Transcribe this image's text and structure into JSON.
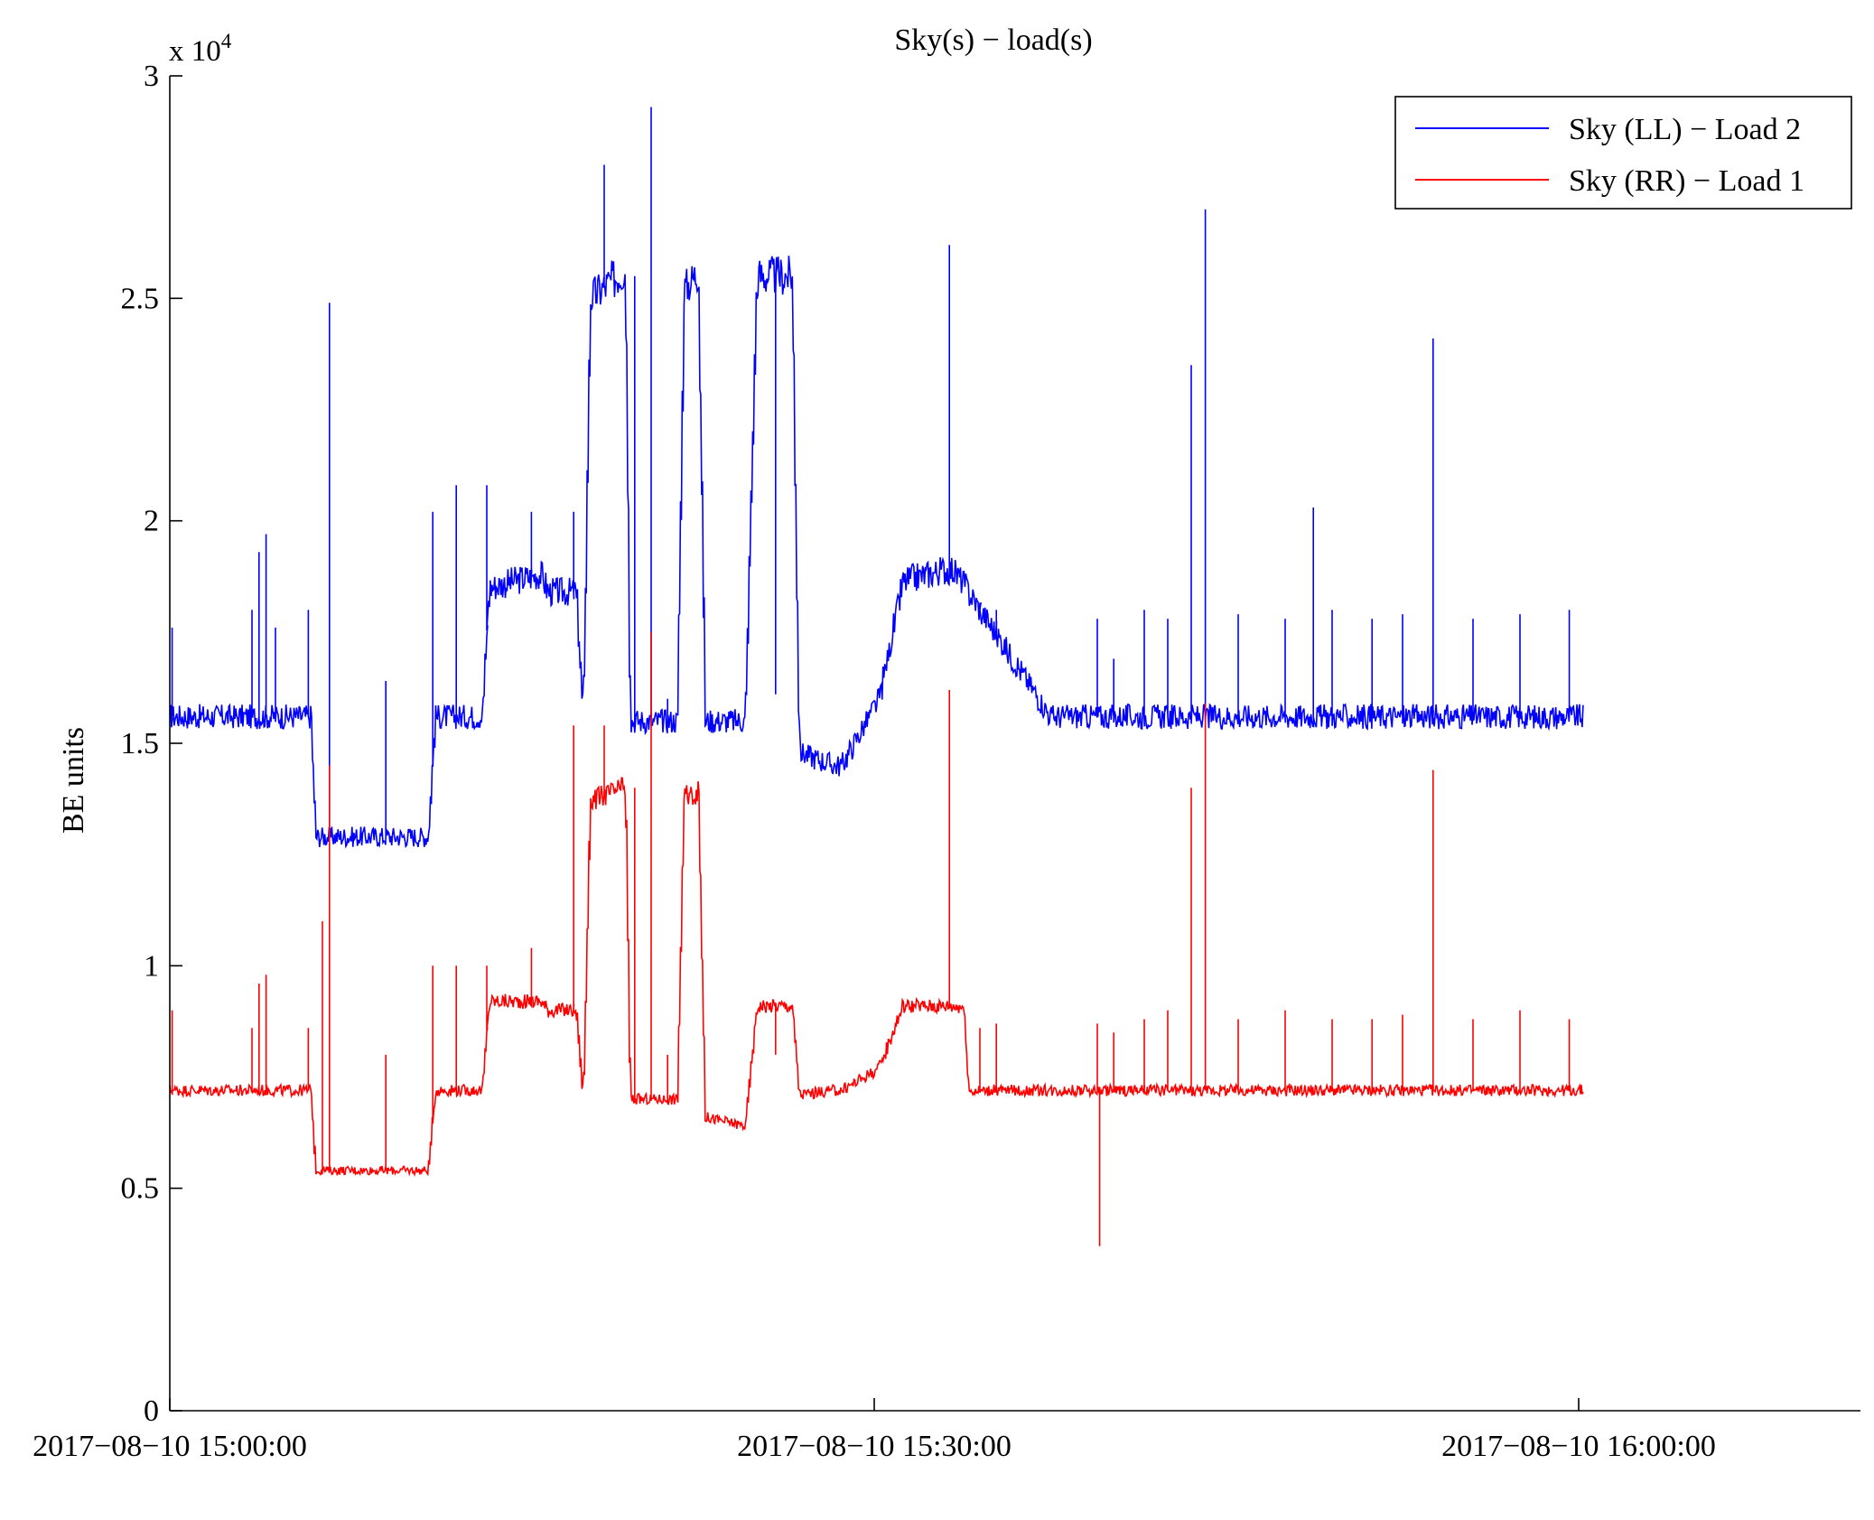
{
  "chart_data": {
    "type": "line",
    "title": "Sky(s) − load(s)",
    "xlabel": "",
    "ylabel": "BE units",
    "y_multiplier_label": "x 10",
    "y_multiplier_exponent": "4",
    "xlim_minutes": [
      0,
      72
    ],
    "ylim": [
      0,
      3
    ],
    "yticks": [
      0,
      0.5,
      1,
      1.5,
      2,
      2.5,
      3
    ],
    "ytick_labels": [
      "0",
      "0.5",
      "1",
      "1.5",
      "2",
      "2.5",
      "3"
    ],
    "xticks_minutes": [
      0,
      30,
      60
    ],
    "xtick_labels": [
      "2017−08−10 15:00:00",
      "2017−08−10 15:30:00",
      "2017−08−10 16:00:00"
    ],
    "grid": false,
    "legend_position": "top-right",
    "series": [
      {
        "name": "Sky (LL) − Load 2",
        "color": "#0000ff",
        "x_minutes": [
          0,
          6,
          6.2,
          7.5,
          7.7,
          9.5,
          9.7,
          11,
          11.3,
          12.5,
          12.7,
          13.3,
          13.6,
          15.8,
          16.1,
          17.3,
          17.6,
          17.9,
          19.3,
          19.4,
          19.6,
          21.6,
          21.9,
          22.5,
          22.8,
          24.5,
          25,
          26.5,
          26.8,
          28.3,
          28.6,
          30.2,
          31.2,
          31.6,
          33,
          33.3,
          33.8,
          34,
          37.5,
          60.2
        ],
        "y": [
          1.56,
          1.56,
          1.29,
          1.29,
          1.29,
          1.29,
          1.29,
          1.29,
          1.56,
          1.56,
          1.56,
          1.56,
          1.85,
          1.88,
          1.84,
          1.84,
          1.55,
          2.5,
          2.56,
          2.56,
          1.55,
          1.55,
          2.52,
          2.56,
          1.55,
          1.55,
          2.55,
          2.55,
          1.48,
          1.45,
          1.45,
          1.6,
          1.86,
          1.87,
          1.89,
          1.89,
          1.86,
          1.84,
          1.56,
          1.56
        ],
        "spikes": [
          [
            0.1,
            1.76
          ],
          [
            3.5,
            1.8
          ],
          [
            3.8,
            1.93
          ],
          [
            4.1,
            1.97
          ],
          [
            4.5,
            1.76
          ],
          [
            5.9,
            1.8
          ],
          [
            6.8,
            2.49
          ],
          [
            9.2,
            1.64
          ],
          [
            11.2,
            2.02
          ],
          [
            12.2,
            2.08
          ],
          [
            13.5,
            2.08
          ],
          [
            15.4,
            2.02
          ],
          [
            17.2,
            2.02
          ],
          [
            18.5,
            2.8
          ],
          [
            19.8,
            2.55
          ],
          [
            20.5,
            2.93
          ],
          [
            21.2,
            1.6
          ],
          [
            25.8,
            1.61
          ],
          [
            32.5,
            1.88
          ],
          [
            33.2,
            2.62
          ],
          [
            34.5,
            1.8
          ],
          [
            35.2,
            1.8
          ],
          [
            39.5,
            1.78
          ],
          [
            40.2,
            1.69
          ],
          [
            41.5,
            1.8
          ],
          [
            42.5,
            1.78
          ],
          [
            43.5,
            2.35
          ],
          [
            44.1,
            2.7
          ],
          [
            45.5,
            1.79
          ],
          [
            47.5,
            1.78
          ],
          [
            48.7,
            2.03
          ],
          [
            49.5,
            1.8
          ],
          [
            51.2,
            1.78
          ],
          [
            52.5,
            1.79
          ],
          [
            53.8,
            2.41
          ],
          [
            55.5,
            1.78
          ],
          [
            57.5,
            1.79
          ],
          [
            59.6,
            1.8
          ],
          [
            60.5,
            2.3
          ],
          [
            61.5,
            1.76
          ],
          [
            62.5,
            1.8
          ],
          [
            64.5,
            1.76
          ],
          [
            65.5,
            1.77
          ],
          [
            66,
            1.75
          ],
          [
            67.3,
            1.8
          ],
          [
            68.5,
            1.77
          ],
          [
            69.2,
            1.76
          ],
          [
            70.5,
            1.76
          ],
          [
            71.3,
            1.75
          ]
        ]
      },
      {
        "name": "Sky (RR) − Load 1",
        "color": "#ff0000",
        "x_minutes": [
          0,
          6,
          6.2,
          7.5,
          7.7,
          9.5,
          9.7,
          11,
          11.3,
          12.5,
          12.7,
          13.3,
          13.6,
          15.8,
          16.1,
          17.3,
          17.6,
          17.9,
          19.3,
          19.4,
          19.6,
          21.6,
          21.9,
          22.5,
          22.8,
          24.5,
          25,
          26.5,
          26.8,
          28.3,
          28.6,
          30.2,
          31.2,
          31.6,
          33,
          33.3,
          33.8,
          34,
          37.5,
          60.2
        ],
        "y": [
          0.72,
          0.72,
          0.54,
          0.54,
          0.54,
          0.54,
          0.54,
          0.54,
          0.72,
          0.72,
          0.72,
          0.72,
          0.92,
          0.92,
          0.9,
          0.9,
          0.7,
          1.37,
          1.4,
          1.4,
          0.7,
          0.7,
          1.38,
          1.39,
          0.66,
          0.64,
          0.91,
          0.91,
          0.71,
          0.72,
          0.72,
          0.77,
          0.91,
          0.91,
          0.91,
          0.91,
          0.91,
          0.72,
          0.72,
          0.72
        ],
        "spikes": [
          [
            0.1,
            0.9
          ],
          [
            3.5,
            0.86
          ],
          [
            3.8,
            0.96
          ],
          [
            4.1,
            0.98
          ],
          [
            5.9,
            0.86
          ],
          [
            6.5,
            1.1
          ],
          [
            6.8,
            1.45
          ],
          [
            9.2,
            0.8
          ],
          [
            11.2,
            1.0
          ],
          [
            12.2,
            1.0
          ],
          [
            13.5,
            1.0
          ],
          [
            15.4,
            1.04
          ],
          [
            17.2,
            1.54
          ],
          [
            18.5,
            1.54
          ],
          [
            19.8,
            1.4
          ],
          [
            20.5,
            1.75
          ],
          [
            21.2,
            0.8
          ],
          [
            25.8,
            0.8
          ],
          [
            32.5,
            0.91
          ],
          [
            33.2,
            1.62
          ],
          [
            34.5,
            0.86
          ],
          [
            35.2,
            0.87
          ],
          [
            39.5,
            0.87
          ],
          [
            40.2,
            0.85
          ],
          [
            41.5,
            0.88
          ],
          [
            42.5,
            0.9
          ],
          [
            43.5,
            1.4
          ],
          [
            44.1,
            1.59
          ],
          [
            45.5,
            0.88
          ],
          [
            47.5,
            0.9
          ],
          [
            49.5,
            0.88
          ],
          [
            51.2,
            0.88
          ],
          [
            52.5,
            0.89
          ],
          [
            53.8,
            1.44
          ],
          [
            55.5,
            0.88
          ],
          [
            57.5,
            0.9
          ],
          [
            59.6,
            0.88
          ],
          [
            60.5,
            1.4
          ],
          [
            61.5,
            0.88
          ],
          [
            62.5,
            0.88
          ],
          [
            64.5,
            0.88
          ],
          [
            65.5,
            0.87
          ],
          [
            67.3,
            0.88
          ],
          [
            68.5,
            0.88
          ],
          [
            69.2,
            0.88
          ],
          [
            70.5,
            0.9
          ],
          [
            71.3,
            0.88
          ]
        ],
        "dips": [
          [
            39.6,
            0.37
          ]
        ]
      }
    ]
  }
}
